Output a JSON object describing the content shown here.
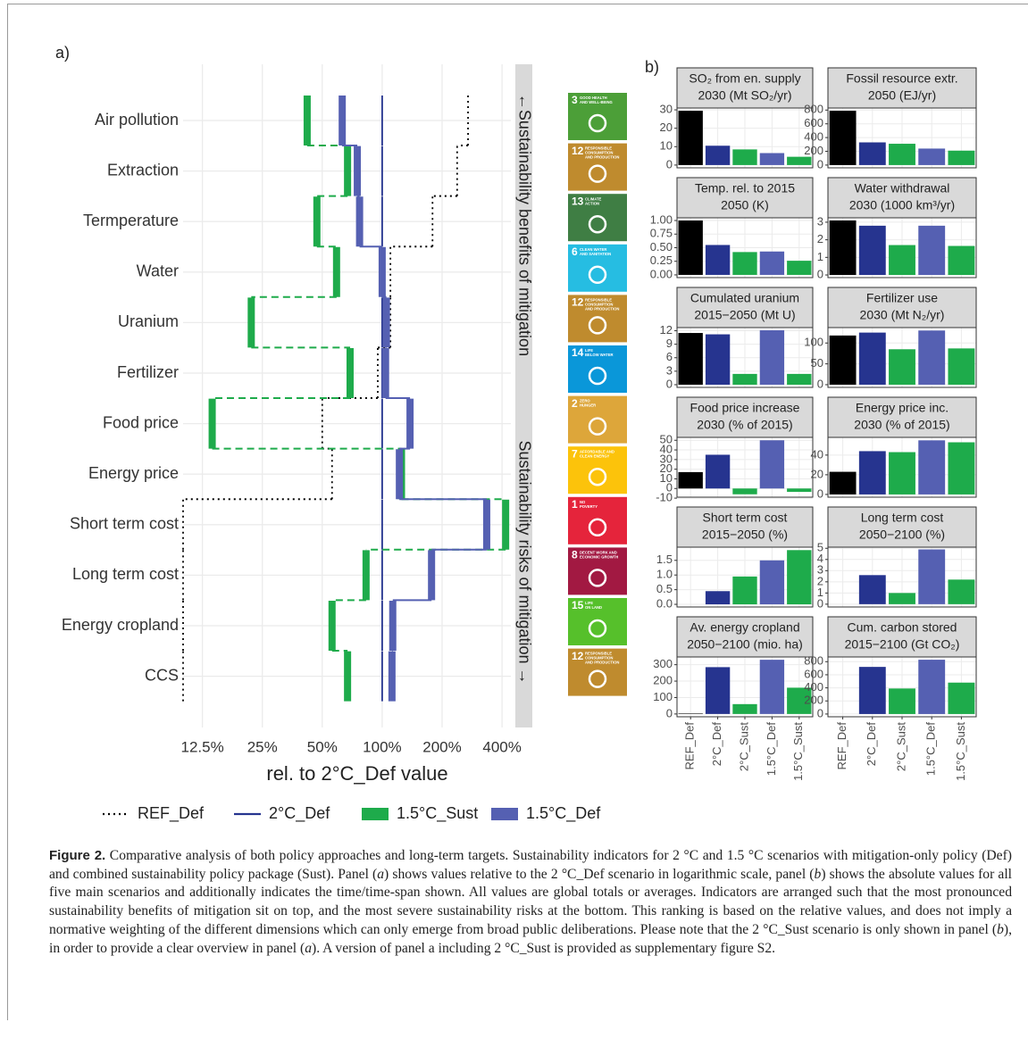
{
  "chart_data": [
    {
      "type": "step",
      "label": "a)",
      "categories": [
        "Air pollution",
        "Extraction",
        "Termperature",
        "Water",
        "Uranium",
        "Fertilizer",
        "Food price",
        "Energy price",
        "Short term cost",
        "Long term cost",
        "Energy cropland",
        "CCS"
      ],
      "series": [
        {
          "name": "REF_Def",
          "color": "#000000",
          "line_style": "dotted",
          "thick": false,
          "values": [
            270,
            238,
            179,
            110,
            110,
            95,
            50,
            56,
            0,
            0,
            0,
            0
          ]
        },
        {
          "name": "2°C_Def",
          "color": "#26348f",
          "line_style": "solid",
          "thick": false,
          "values": [
            100,
            100,
            100,
            100,
            100,
            100,
            100,
            100,
            100,
            100,
            100,
            100
          ]
        },
        {
          "name": "1.5°C_Sust",
          "color": "#1eab4b",
          "line_style": "dashed",
          "thick": true,
          "values": [
            42,
            67,
            47,
            59,
            22,
            69,
            14,
            125,
            417,
            83,
            56,
            67
          ]
        },
        {
          "name": "1.5°C_Def",
          "color": "#5560b2",
          "line_style": "solid",
          "thick": true,
          "values": [
            63,
            75,
            77,
            100,
            105,
            104,
            138,
            122,
            335,
            177,
            113,
            112
          ]
        }
      ],
      "xlabel": "rel. to 2°C_Def value",
      "log_x": true,
      "grid": true,
      "xlim": [
        10,
        443
      ],
      "xticks": [
        {
          "value": 12.5,
          "label": "12.5%"
        },
        {
          "value": 25,
          "label": "25%"
        },
        {
          "value": 50,
          "label": "50%"
        },
        {
          "value": 100,
          "label": "100%"
        },
        {
          "value": 200,
          "label": "200%"
        },
        {
          "value": 400,
          "label": "400%"
        }
      ],
      "annotations": [
        "←Sustainability benefits of mitigation",
        "Sustainability risks of mitigation →"
      ]
    },
    {
      "type": "bar-facets",
      "label": "b)",
      "categories": [
        "REF_Def",
        "2°C_Def",
        "2°C_Sust",
        "1.5°C_Def",
        "1.5°C_Sust"
      ],
      "colors": [
        "#000000",
        "#26348f",
        "#1eab4b",
        "#5560b2",
        "#1eab4b"
      ],
      "grid": true,
      "facets": [
        {
          "title": [
            "SO₂ from en. supply",
            "2030 (Mt SO₂/yr)"
          ],
          "values": [
            29.5,
            10.5,
            8.5,
            6.5,
            4.5
          ],
          "ylim": [
            -1.5,
            31
          ],
          "yticks": [
            0,
            10,
            20,
            30
          ]
        },
        {
          "title": [
            "Fossil resource extr.",
            "2050 (EJ/yr)"
          ],
          "values": [
            790,
            330,
            310,
            240,
            210
          ],
          "ylim": [
            -40,
            830
          ],
          "yticks": [
            0,
            200,
            400,
            600,
            800
          ]
        },
        {
          "title": [
            "Temp. rel. to 2015",
            "2050 (K)"
          ],
          "values": [
            1.0,
            0.55,
            0.42,
            0.43,
            0.26
          ],
          "ylim": [
            -0.05,
            1.05
          ],
          "yticks": [
            {
              "value": 0,
              "label": "0.00"
            },
            {
              "value": 0.25,
              "label": "0.25"
            },
            {
              "value": 0.5,
              "label": "0.50"
            },
            {
              "value": 0.75,
              "label": "0.75"
            },
            {
              "value": 1,
              "label": "1.00"
            }
          ]
        },
        {
          "title": [
            "Water withdrawal",
            "2030 (1000 km³/yr)"
          ],
          "values": [
            3.1,
            2.8,
            1.7,
            2.8,
            1.65
          ],
          "ylim": [
            -0.15,
            3.25
          ],
          "yticks": [
            0,
            1,
            2,
            3
          ]
        },
        {
          "title": [
            "Cumulated uranium",
            "2015−2050 (Mt U)"
          ],
          "values": [
            11.5,
            11.2,
            2.4,
            12.1,
            2.4
          ],
          "ylim": [
            -0.6,
            12.7
          ],
          "yticks": [
            0,
            3,
            6,
            9,
            12
          ]
        },
        {
          "title": [
            "Fertilizer use",
            "2030 (Mt N₂/yr)"
          ],
          "values": [
            118,
            125,
            85,
            130,
            87
          ],
          "ylim": [
            -6.5,
            137
          ],
          "yticks": [
            0,
            50,
            100
          ]
        },
        {
          "title": [
            "Food price increase",
            "2030 (% of 2015)"
          ],
          "values": [
            17,
            35,
            -6,
            50,
            -3.5
          ],
          "ylim": [
            -9,
            53
          ],
          "yticks": [
            -10,
            0,
            10,
            20,
            30,
            40,
            50
          ]
        },
        {
          "title": [
            "Energy price inc.",
            "2030 (% of 2015)"
          ],
          "values": [
            23,
            44,
            43,
            55,
            53
          ],
          "ylim": [
            -2.8,
            58
          ],
          "yticks": [
            0,
            20,
            40
          ]
        },
        {
          "title": [
            "Short term cost",
            "2015−2050 (%)"
          ],
          "values": [
            0,
            0.45,
            0.95,
            1.5,
            1.85
          ],
          "ylim": [
            -0.09,
            1.95
          ],
          "yticks": [
            {
              "value": 0,
              "label": "0.0"
            },
            {
              "value": 0.5,
              "label": "0.5"
            },
            {
              "value": 1,
              "label": "1.0"
            },
            {
              "value": 1.5,
              "label": "1.5"
            }
          ]
        },
        {
          "title": [
            "Long term cost",
            "2050−2100 (%)"
          ],
          "values": [
            0,
            2.6,
            1.0,
            4.9,
            2.2
          ],
          "ylim": [
            -0.25,
            5.1
          ],
          "yticks": [
            0,
            1,
            2,
            3,
            4,
            5
          ]
        },
        {
          "title": [
            "Av. energy cropland",
            "2050−2100 (mio. ha)"
          ],
          "values": [
            3,
            285,
            60,
            330,
            160
          ],
          "ylim": [
            -17,
            347
          ],
          "yticks": [
            0,
            100,
            200,
            300
          ]
        },
        {
          "title": [
            "Cum. carbon stored",
            "2015−2100 (Gt CO₂)"
          ],
          "values": [
            0,
            720,
            390,
            830,
            480
          ],
          "ylim": [
            -42,
            872
          ],
          "yticks": [
            0,
            200,
            400,
            600,
            800
          ]
        }
      ]
    }
  ],
  "sdg_icons": [
    {
      "number": "3",
      "label": [
        "GOOD HEALTH",
        "AND WELL-BEING"
      ],
      "color": "#4c9f38"
    },
    {
      "number": "12",
      "label": [
        "RESPONSIBLE",
        "CONSUMPTION",
        "AND PRODUCTION"
      ],
      "color": "#bf8b2e"
    },
    {
      "number": "13",
      "label": [
        "CLIMATE",
        "ACTION"
      ],
      "color": "#3f7e44"
    },
    {
      "number": "6",
      "label": [
        "CLEAN WATER",
        "AND SANITATION"
      ],
      "color": "#26bde2"
    },
    {
      "number": "12",
      "label": [
        "RESPONSIBLE",
        "CONSUMPTION",
        "AND PRODUCTION"
      ],
      "color": "#bf8b2e"
    },
    {
      "number": "14",
      "label": [
        "LIFE",
        "BELOW WATER"
      ],
      "color": "#0a97d9"
    },
    {
      "number": "2",
      "label": [
        "ZERO",
        "HUNGER"
      ],
      "color": "#dda63a"
    },
    {
      "number": "7",
      "label": [
        "AFFORDABLE AND",
        "CLEAN ENERGY"
      ],
      "color": "#fcc30b"
    },
    {
      "number": "1",
      "label": [
        "NO",
        "POVERTY"
      ],
      "color": "#e5243b"
    },
    {
      "number": "8",
      "label": [
        "DECENT WORK AND",
        "ECONOMIC GROWTH"
      ],
      "color": "#a21942"
    },
    {
      "number": "15",
      "label": [
        "LIFE",
        "ON LAND"
      ],
      "color": "#56c02b"
    },
    {
      "number": "12",
      "label": [
        "RESPONSIBLE",
        "CONSUMPTION",
        "AND PRODUCTION"
      ],
      "color": "#bf8b2e"
    }
  ],
  "caption": {
    "label": "Figure 2.",
    "text": [
      "Comparative analysis of both policy approaches and long-term targets. Sustainability indicators for 2 °C and 1.5 °C scenarios with mitigation-only policy (Def) and combined sustainability policy package (Sust). Panel (",
      "a",
      ") shows values relative to the 2 °C_Def scenario in logarithmic scale, panel (",
      "b",
      ") shows the absolute values for all five main scenarios and additionally indicates the time/time-span shown. All values are global totals or averages. Indicators are arranged such that the most pronounced sustainability benefits of mitigation sit on top, and the most severe sustainability risks at the bottom. This ranking is based on the relative values, and does not imply a normative weighting of the different dimensions which can only emerge from broad public deliberations. Please note that the 2 °C_Sust scenario is only shown in panel (",
      "b",
      "), in order to provide a clear overview in panel (",
      "a",
      "). A version of panel a including 2 °C_Sust is provided as supplementary figure S2."
    ]
  }
}
